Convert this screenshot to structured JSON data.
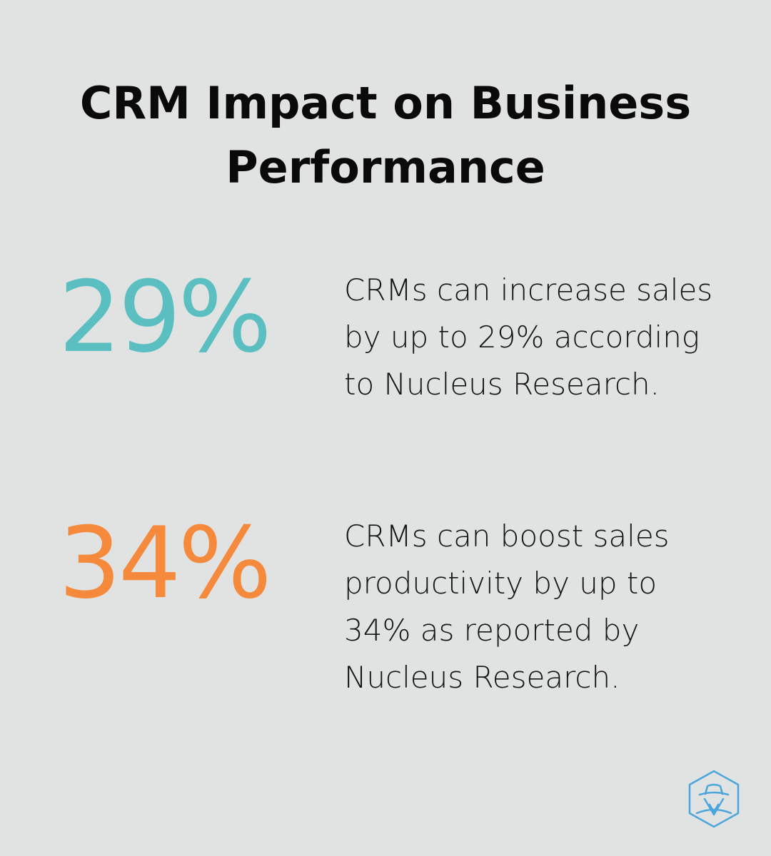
{
  "title": "CRM Impact on Business Performance",
  "stats": [
    {
      "value": "29%",
      "color": "#5bbfc1",
      "description": "CRMs can increase sales by up to 29% according to Nucleus Research."
    },
    {
      "value": "34%",
      "color": "#f58a3c",
      "description": "CRMs can boost sales productivity by up to 34% as reported by Nucleus Research."
    }
  ],
  "logo": {
    "icon": "spy-hat-hexagon-icon",
    "color": "#4aa6dc"
  }
}
